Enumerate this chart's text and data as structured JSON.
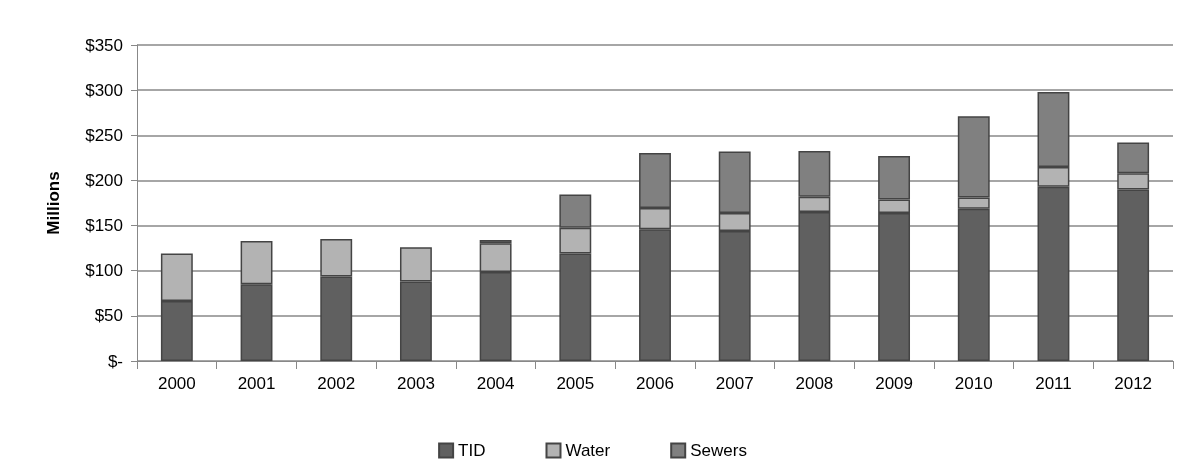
{
  "chart_data": {
    "type": "bar",
    "stacked": true,
    "ylabel": "Millions",
    "categories": [
      "2000",
      "2001",
      "2002",
      "2003",
      "2004",
      "2005",
      "2006",
      "2007",
      "2008",
      "2009",
      "2010",
      "2011",
      "2012"
    ],
    "series": [
      {
        "name": "TID",
        "color": "#606060",
        "values": [
          66.5,
          85,
          93.5,
          88,
          98.5,
          119,
          146,
          144,
          165,
          164,
          168.5,
          193,
          190
        ]
      },
      {
        "name": "Water",
        "color": "#b3b3b3",
        "values": [
          52.5,
          48,
          41.5,
          38,
          32,
          28.5,
          23.5,
          20,
          17,
          15,
          12.5,
          22,
          18
        ]
      },
      {
        "name": "Sewers",
        "color": "#808080",
        "values": [
          null,
          null,
          null,
          null,
          3.5,
          37,
          61,
          68,
          50.5,
          48,
          90,
          83,
          34
        ]
      }
    ],
    "ylim": [
      0,
      350
    ],
    "yticks": [
      {
        "value": 0,
        "label": "$-"
      },
      {
        "value": 50,
        "label": "$50"
      },
      {
        "value": 100,
        "label": "$100"
      },
      {
        "value": 150,
        "label": "$150"
      },
      {
        "value": 200,
        "label": "$200"
      },
      {
        "value": 250,
        "label": "$250"
      },
      {
        "value": 300,
        "label": "$300"
      },
      {
        "value": 350,
        "label": "$350"
      }
    ],
    "grid": "y",
    "legend": "bottom"
  }
}
